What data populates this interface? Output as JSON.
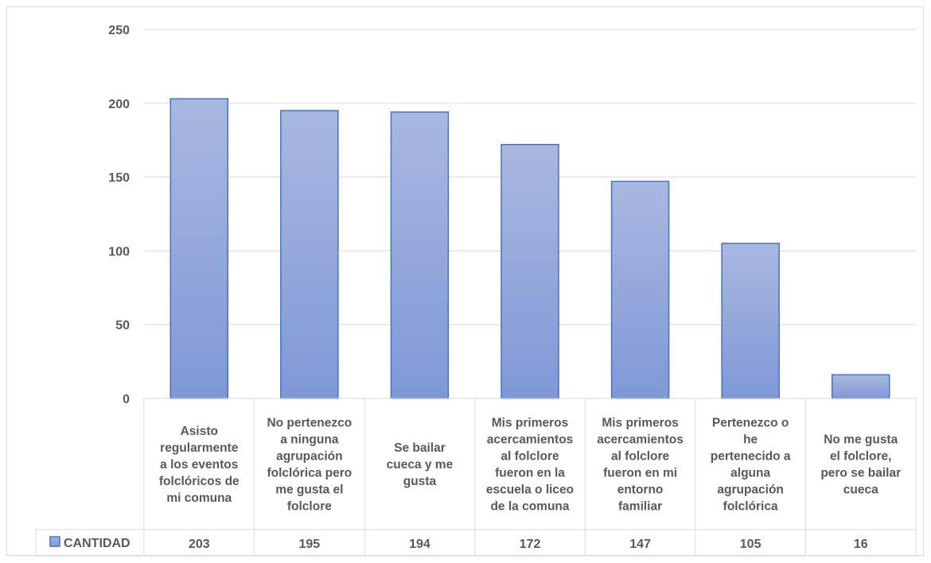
{
  "chart_data": {
    "type": "bar",
    "categories": [
      [
        "Asisto",
        "regularmente",
        "a los eventos",
        "folclóricos de",
        "mi comuna"
      ],
      [
        "No pertenezco",
        "a ninguna",
        "agrupación",
        "folclórica pero",
        "me gusta el",
        "folclore"
      ],
      [
        "Se bailar",
        "cueca y me",
        "gusta"
      ],
      [
        "Mis primeros",
        "acercamientos",
        "al folclore",
        "fueron en la",
        "escuela o liceo",
        "de la comuna"
      ],
      [
        "Mis primeros",
        "acercamientos",
        "al folclore",
        "fueron en mi",
        "entorno",
        "familiar"
      ],
      [
        "Pertenezco o",
        "he",
        "pertenecido a",
        "alguna",
        "agrupación",
        "folclórica"
      ],
      [
        "No me gusta",
        "el folclore,",
        "pero se bailar",
        "cueca"
      ]
    ],
    "series": [
      {
        "name": "CANTIDAD",
        "values": [
          203,
          195,
          194,
          172,
          147,
          105,
          16
        ]
      }
    ],
    "yticks": [
      "0",
      "50",
      "100",
      "150",
      "200",
      "250"
    ],
    "ylim": [
      0,
      250
    ],
    "grid": true,
    "legend": "data-table",
    "colors": {
      "bar_top": "#a9b8e0",
      "bar_bottom": "#7f98d6",
      "bar_border": "#4472c4",
      "grid": "#d9d9d9",
      "text": "#595959"
    }
  }
}
